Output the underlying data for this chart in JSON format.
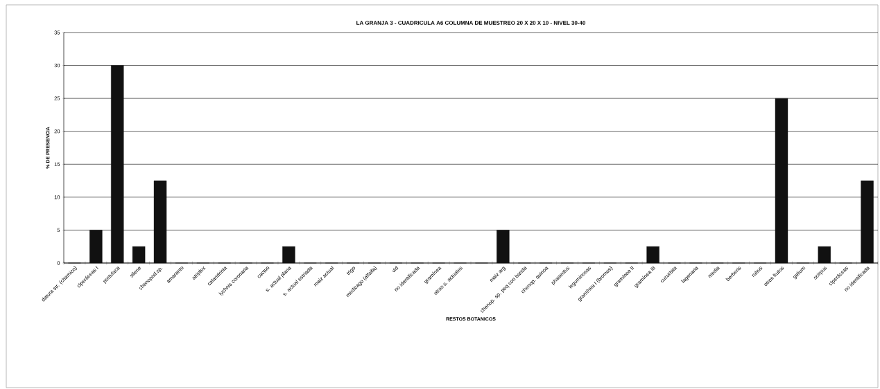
{
  "chart_data": {
    "type": "bar",
    "title": "LA GRANJA 3 - CUADRICULA  A6 COLUMNA DE MUESTREO 20 X 20 X 10 - NIVEL 30-40",
    "xlabel": "RESTOS BOTANICOS",
    "ylabel": "% DE PRESENCIA",
    "categories": [
      "datura str. (chamico)",
      "ciperáceas I",
      "portulaca",
      "silene",
      "chenopod.sp.",
      "amaranto",
      "atriplex",
      "calandrinia",
      "lychnis coronaria",
      "cactus",
      "s. actual plana",
      "s. actual estriada",
      "maiz actual",
      "trigo",
      "medicago (alfalfa)",
      "vid",
      "no identificada",
      "gramínea",
      "otras s. actuales",
      null,
      "maiz arg",
      "chenop. sp. peq con banda",
      "chenop. quinoa",
      "phaseolus",
      "leguminosas",
      "gramínea I (bromus)",
      "gramínea II",
      "gramínea III",
      "cucurbita",
      "lagenaria",
      "media",
      "berberis",
      "rubus",
      "otros frutos",
      "galium",
      "scirpus",
      "ciperáceas",
      "no identificada"
    ],
    "values": [
      0,
      5,
      30,
      2.5,
      12.5,
      0,
      0,
      0,
      0,
      0,
      2.5,
      0,
      0,
      0,
      0,
      0,
      0,
      0,
      0,
      0,
      5,
      0,
      0,
      0,
      0,
      0,
      0,
      2.5,
      0,
      0,
      0,
      0,
      0,
      25,
      0,
      2.5,
      0,
      12.5
    ],
    "color": "#111111",
    "ylim": [
      0,
      35
    ],
    "yticks": [
      0,
      5,
      10,
      15,
      20,
      25,
      30,
      35
    ],
    "grid": "y"
  }
}
